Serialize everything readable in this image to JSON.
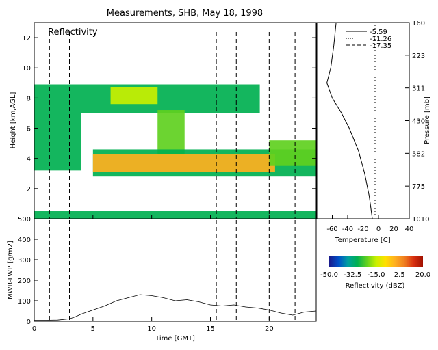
{
  "title": "Measurements, SHB, May 18, 1998",
  "panel_label": "Reflectivity",
  "colors": {
    "axis": "#000000",
    "background": "#ffffff",
    "colorbar_stops": [
      "#1a1a8c",
      "#0050c8",
      "#00a0a0",
      "#00b050",
      "#60d020",
      "#c8f000",
      "#ffe000",
      "#ffb020",
      "#f08020",
      "#d83010",
      "#a01000"
    ]
  },
  "chart_data": [
    {
      "name": "reflectivity",
      "type": "heatmap",
      "xlabel": "Time [GMT]",
      "ylabel": "Height [km,AGL]",
      "xlim": [
        0,
        24
      ],
      "ylim": [
        0,
        13
      ],
      "xticks": [
        "0",
        "5",
        "10",
        "15",
        "20"
      ],
      "yticks": [
        "2",
        "4",
        "6",
        "8",
        "10",
        "12"
      ],
      "vertical_dashed_lines_x": [
        1.3,
        3.0,
        15.5,
        17.2,
        20.0,
        22.2
      ],
      "layers": [
        {
          "x0": 0.0,
          "x1": 19.2,
          "y0": 7.0,
          "y1": 8.9,
          "value": -30
        },
        {
          "x0": 6.5,
          "x1": 10.5,
          "y0": 7.6,
          "y1": 8.7,
          "value": -12
        },
        {
          "x0": 10.5,
          "x1": 12.8,
          "y0": 4.2,
          "y1": 7.2,
          "value": -22
        },
        {
          "x0": 0.0,
          "x1": 4.0,
          "y0": 3.2,
          "y1": 7.0,
          "value": -30
        },
        {
          "x0": 5.0,
          "x1": 24.0,
          "y0": 2.8,
          "y1": 4.6,
          "value": -28
        },
        {
          "x0": 5.0,
          "x1": 20.5,
          "y0": 3.1,
          "y1": 4.3,
          "value": 0
        },
        {
          "x0": 20.0,
          "x1": 24.0,
          "y0": 3.5,
          "y1": 5.2,
          "value": -25
        },
        {
          "x0": 0.0,
          "x1": 24.0,
          "y0": 0.0,
          "y1": 0.5,
          "value": -30
        }
      ]
    },
    {
      "name": "mwr-lwp",
      "type": "line",
      "xlabel": "Time [GMT]",
      "ylabel": "MWR-LWP [g/m2]",
      "xlim": [
        0,
        24
      ],
      "ylim": [
        0,
        500
      ],
      "xticks": [
        "0",
        "5",
        "10",
        "15",
        "20"
      ],
      "yticks": [
        "0",
        "100",
        "200",
        "300",
        "400",
        "500"
      ],
      "x": [
        0,
        1,
        2,
        3,
        3.5,
        4,
        5,
        6,
        7,
        8,
        9,
        10,
        11,
        12,
        13,
        14,
        15,
        16,
        17,
        18,
        19,
        20,
        21,
        22,
        23,
        24
      ],
      "y": [
        5,
        5,
        6,
        12,
        22,
        35,
        55,
        75,
        100,
        115,
        130,
        125,
        115,
        100,
        105,
        95,
        80,
        75,
        80,
        70,
        65,
        55,
        40,
        30,
        45,
        50
      ]
    },
    {
      "name": "temperature-profile",
      "type": "line",
      "xlabel": "Temperature [C]",
      "ylabel": "Pressure [mb]",
      "xlim": [
        -80,
        40
      ],
      "xticks": [
        "-60",
        "-40",
        "-20",
        "0",
        "20",
        "40"
      ],
      "pressure_ticks": [
        "160",
        "223",
        "311",
        "430",
        "582",
        "775",
        "1010"
      ],
      "legend": [
        "-5.59",
        "-11.26",
        "-17.35"
      ],
      "x": [
        -55,
        -58,
        -62,
        -67,
        -60,
        -48,
        -38,
        -26,
        -18,
        -12,
        -8
      ],
      "y": [
        0,
        1,
        2,
        3,
        4,
        5,
        6,
        7,
        8,
        9,
        10
      ],
      "y_as_height_km": [
        13,
        11.5,
        10,
        9,
        8,
        7,
        6,
        4.5,
        3,
        1.5,
        0
      ]
    },
    {
      "name": "colorbar",
      "type": "heatmap",
      "xlabel": "Reflectivity (dBZ)",
      "range": [
        -50,
        20
      ],
      "tick_labels": [
        "-50.0",
        "-32.5",
        "-15.0",
        "2.5",
        "20.0"
      ]
    }
  ]
}
